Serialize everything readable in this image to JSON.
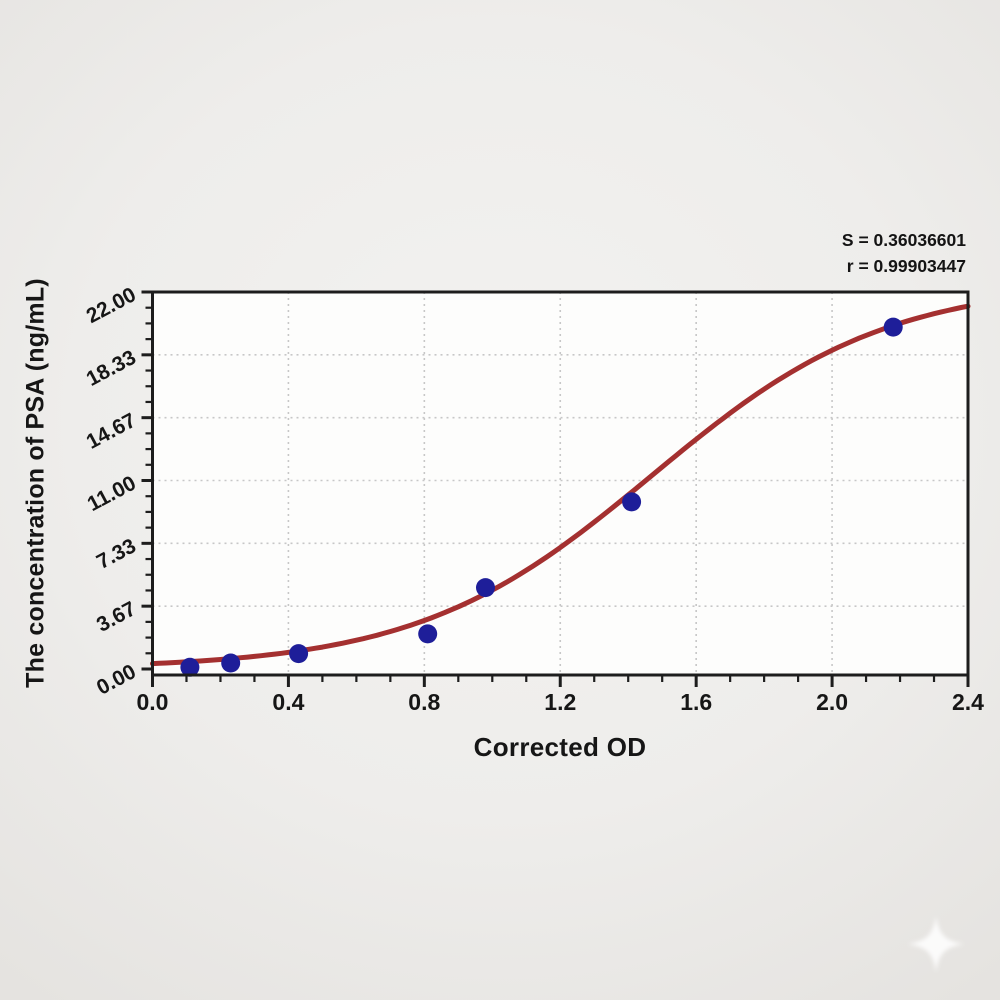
{
  "chart_data": {
    "type": "scatter",
    "title": "",
    "xlabel": "Corrected OD",
    "ylabel": "The concentration of PSA (ng/mL)",
    "annotation": {
      "s_label": "S = 0.36036601",
      "r_label": "r = 0.99903447"
    },
    "axes": {
      "x": {
        "min": 0,
        "max": 2.4,
        "major_ticks": [
          0,
          0.4,
          0.8,
          1.2,
          1.6,
          2.0,
          2.4
        ],
        "major_labels": [
          "0.0",
          "0.4",
          "0.8",
          "1.2",
          "1.6",
          "2.0",
          "2.4"
        ],
        "minor_ticks_between_major": 3
      },
      "y": {
        "min": 0,
        "max": 22,
        "major_ticks": [
          0,
          3.6667,
          7.3333,
          11.0,
          14.6667,
          18.3333,
          22.0
        ],
        "major_labels": [
          "0.00",
          "3.67",
          "7.33",
          "11.00",
          "14.67",
          "18.33",
          "22.00"
        ],
        "minor_ticks_between_major": 3
      }
    },
    "grid": {
      "show": true,
      "style": "dotted",
      "at": "major-ticks"
    },
    "legend": {
      "show": false
    },
    "series": [
      {
        "name": "standard-points",
        "type": "scatter",
        "points": [
          [
            0.11,
            0.1
          ],
          [
            0.23,
            0.35
          ],
          [
            0.43,
            0.9
          ],
          [
            0.81,
            2.05
          ],
          [
            0.98,
            4.75
          ],
          [
            1.41,
            9.75
          ],
          [
            2.18,
            19.95
          ]
        ]
      },
      {
        "name": "fitted-curve",
        "type": "line",
        "model": {
          "form": "logistic",
          "L": 22.6,
          "x0": 1.47,
          "k": 2.9
        },
        "points": [
          [
            0.0,
            0.31
          ],
          [
            0.1,
            0.42
          ],
          [
            0.2,
            0.55
          ],
          [
            0.3,
            0.73
          ],
          [
            0.4,
            0.97
          ],
          [
            0.5,
            1.28
          ],
          [
            0.6,
            1.68
          ],
          [
            0.7,
            2.19
          ],
          [
            0.8,
            2.83
          ],
          [
            0.9,
            3.63
          ],
          [
            1.0,
            4.6
          ],
          [
            1.1,
            5.76
          ],
          [
            1.2,
            7.09
          ],
          [
            1.3,
            8.57
          ],
          [
            1.4,
            10.16
          ],
          [
            1.5,
            11.79
          ],
          [
            1.6,
            13.4
          ],
          [
            1.7,
            14.93
          ],
          [
            1.8,
            16.33
          ],
          [
            1.9,
            17.55
          ],
          [
            2.0,
            18.6
          ],
          [
            2.1,
            19.47
          ],
          [
            2.2,
            20.17
          ],
          [
            2.3,
            20.73
          ],
          [
            2.4,
            21.17
          ]
        ]
      }
    ],
    "colors": {
      "curve": "#a43030",
      "point": "#1e1e99",
      "grid": "#c7c7c7",
      "axis": "#1d1d1d",
      "text": "#161616",
      "plot_bg": "#fdfdfc",
      "page_bg": "#edecea"
    },
    "watermark": "sparkle"
  }
}
